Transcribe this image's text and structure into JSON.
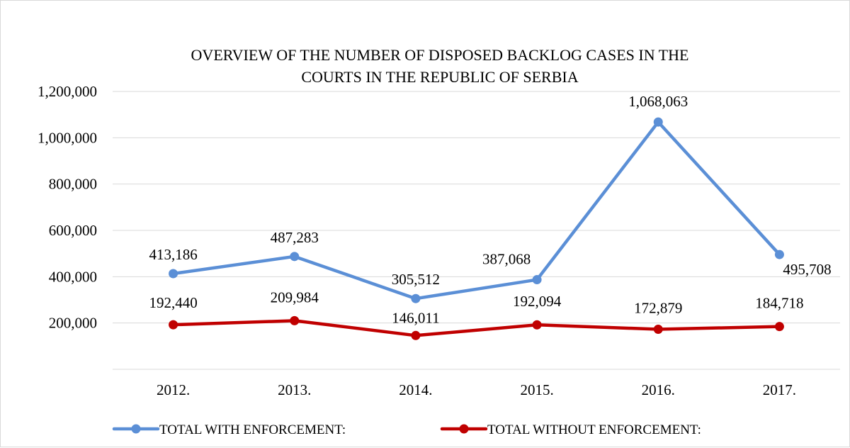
{
  "chart_data": {
    "type": "line",
    "title_lines": [
      "OVERVIEW OF THE NUMBER OF DISPOSED BACKLOG CASES IN THE",
      "COURTS IN THE REPUBLIC OF SERBIA"
    ],
    "categories": [
      "2012.",
      "2013.",
      "2014.",
      "2015.",
      "2016.",
      "2017."
    ],
    "ylim": [
      0,
      1200000
    ],
    "yticks": [
      200000,
      400000,
      600000,
      800000,
      1000000,
      1200000
    ],
    "ytick_labels": [
      "200,000",
      "400,000",
      "600,000",
      "800,000",
      "1,000,000",
      "1,200,000"
    ],
    "grid": true,
    "legend_position": "bottom",
    "series": [
      {
        "name": "TOTAL WITH ENFORCEMENT:",
        "color": "#5b8fd6",
        "values": [
          413186,
          487283,
          305512,
          387068,
          1068063,
          495708
        ],
        "labels": [
          "413,186",
          "487,283",
          "305,512",
          "387,068",
          "1,068,063",
          "495,708"
        ]
      },
      {
        "name": "TOTAL WITHOUT ENFORCEMENT:",
        "color": "#c00000",
        "values": [
          192440,
          209984,
          146011,
          192094,
          172879,
          184718
        ],
        "labels": [
          "192,440",
          "209,984",
          "146,011",
          "192,094",
          "172,879",
          "184,718"
        ]
      }
    ]
  }
}
